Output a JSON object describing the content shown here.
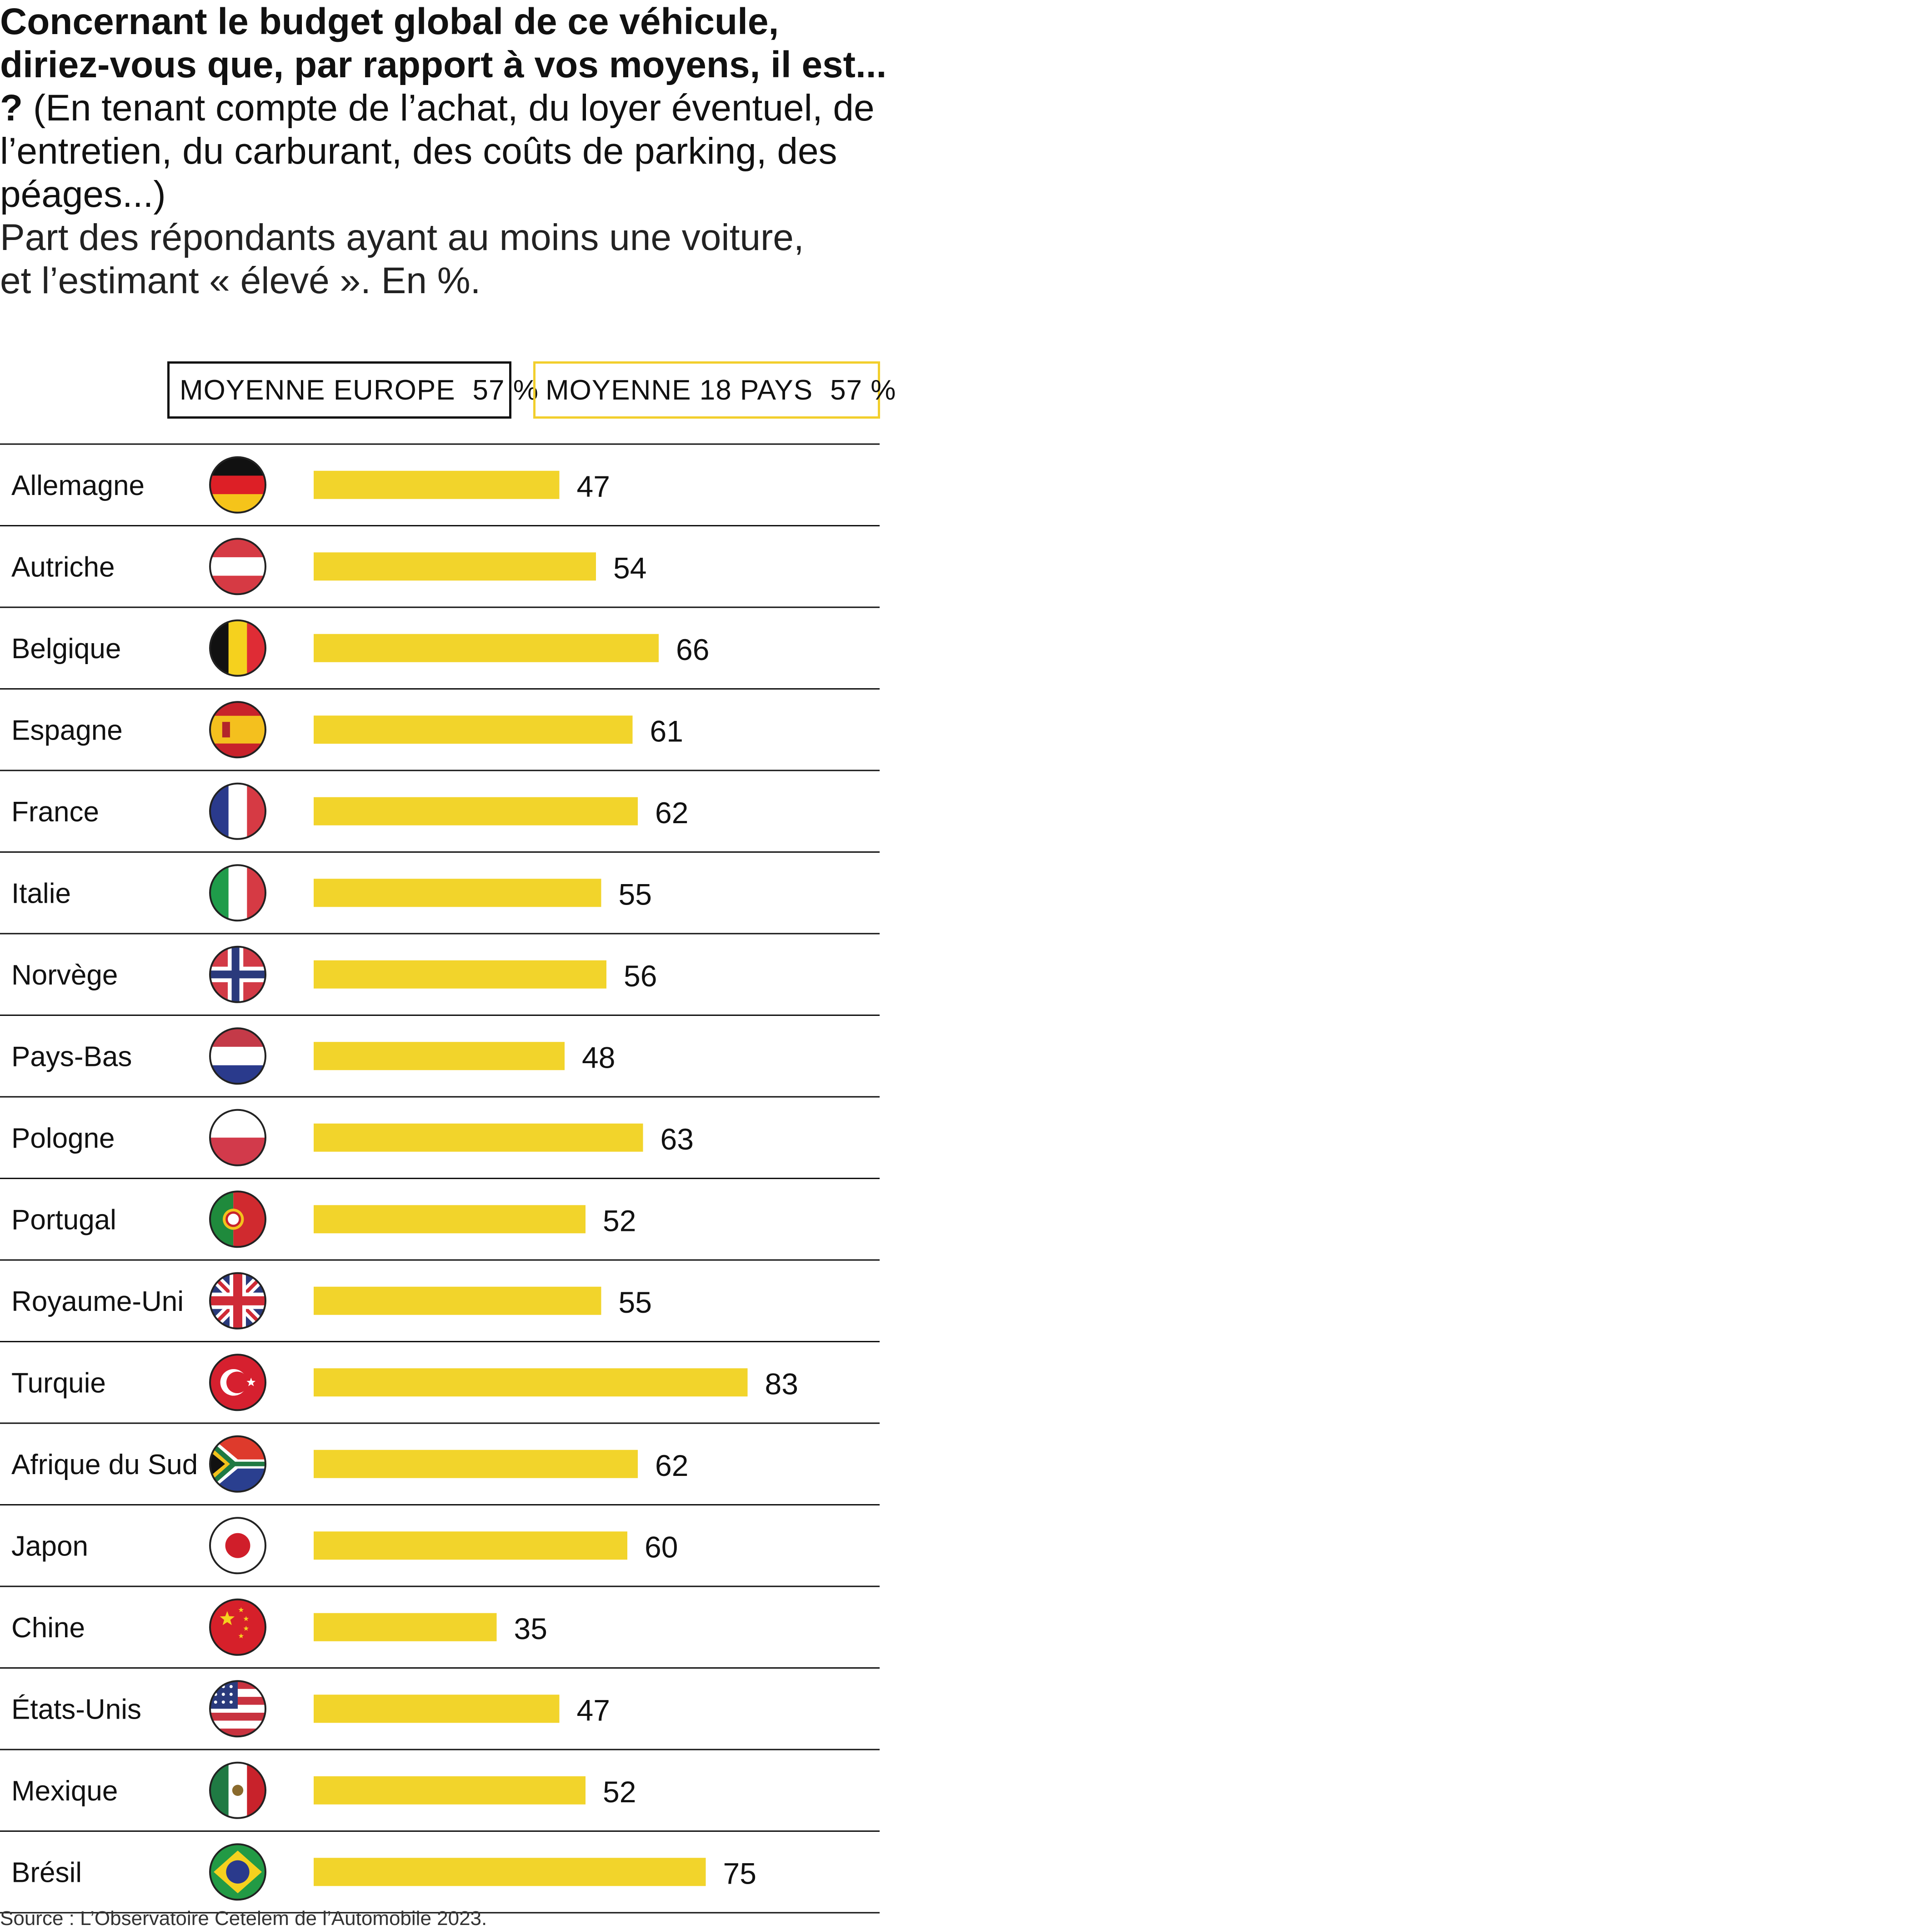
{
  "title": {
    "bold": "Concernant le budget global de ce véhicule, diriez-vous que, par rapport à vos moyens, il est... ?",
    "normal": "(En tenant compte de l’achat, du loyer éventuel, de l’entretien, du carburant, des coûts de parking, des péages...)"
  },
  "subtitle_line1": "Part des répondants ayant au moins une voiture,",
  "subtitle_line2": "et l’estimant « élevé ». En %.",
  "legend": {
    "europe": {
      "label": "MOYENNE EUROPE",
      "value": "57 %"
    },
    "world": {
      "label": "MOYENNE 18 PAYS",
      "value": "57 %"
    }
  },
  "source": "Source : L’Observatoire Cetelem de l’Automobile 2023.",
  "colors": {
    "bar": "#f2d42b",
    "rule": "#111111"
  },
  "chart_data": {
    "type": "bar",
    "orientation": "horizontal",
    "categories": [
      "Allemagne",
      "Autriche",
      "Belgique",
      "Espagne",
      "France",
      "Italie",
      "Norvège",
      "Pays-Bas",
      "Pologne",
      "Portugal",
      "Royaume-Uni",
      "Turquie",
      "Afrique du Sud",
      "Japon",
      "Chine",
      "États-Unis",
      "Mexique",
      "Brésil"
    ],
    "values": [
      47,
      54,
      66,
      61,
      62,
      55,
      56,
      48,
      63,
      52,
      55,
      83,
      62,
      60,
      35,
      47,
      52,
      75
    ],
    "flag_icons": [
      "germany-flag-icon",
      "austria-flag-icon",
      "belgium-flag-icon",
      "spain-flag-icon",
      "france-flag-icon",
      "italy-flag-icon",
      "norway-flag-icon",
      "netherlands-flag-icon",
      "poland-flag-icon",
      "portugal-flag-icon",
      "uk-flag-icon",
      "turkey-flag-icon",
      "south-africa-flag-icon",
      "japan-flag-icon",
      "china-flag-icon",
      "usa-flag-icon",
      "mexico-flag-icon",
      "brazil-flag-icon"
    ],
    "unit": "%",
    "xlim": [
      0,
      100
    ],
    "grid": false
  }
}
